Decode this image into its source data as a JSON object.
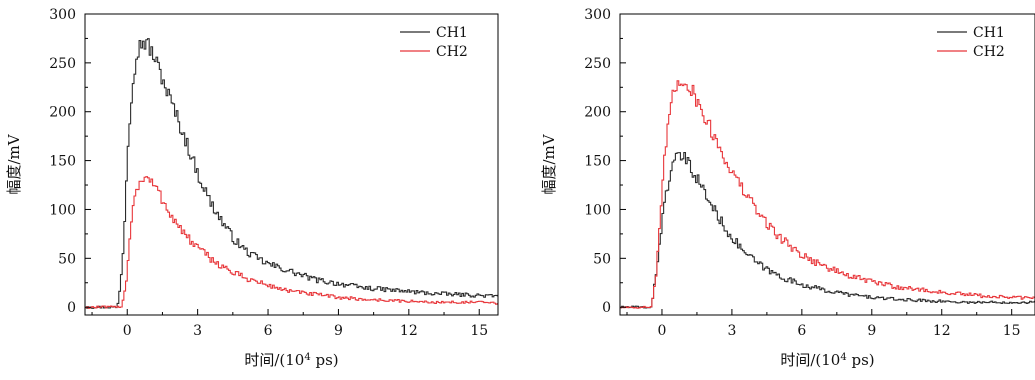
{
  "chart_data": [
    {
      "type": "line",
      "id": "left",
      "xlabel": "时间/(10",
      "xlabel_sup": "4",
      "xlabel_tail": " ps)",
      "ylabel": "幅度/mV",
      "xlim": [
        -1.8,
        15.8
      ],
      "ylim": [
        -8,
        300
      ],
      "xticks": [
        0,
        3,
        6,
        9,
        12,
        15
      ],
      "yticks": [
        0,
        50,
        100,
        150,
        200,
        250,
        300
      ],
      "legend_position": "top-right",
      "series": [
        {
          "name": "CH1",
          "color": "#2b2b2b",
          "x": [
            -1.8,
            -0.5,
            -0.4,
            -0.2,
            0,
            0.2,
            0.4,
            0.6,
            0.8,
            1.0,
            1.3,
            1.6,
            2.0,
            2.5,
            3.0,
            3.5,
            4.0,
            4.5,
            5.0,
            5.5,
            6.0,
            6.5,
            7.0,
            7.5,
            8.0,
            9.0,
            10.0,
            11.0,
            12.0,
            13.0,
            14.0,
            15.0,
            15.8
          ],
          "y": [
            0,
            0,
            5,
            60,
            170,
            235,
            262,
            272,
            270,
            262,
            245,
            225,
            200,
            168,
            135,
            108,
            88,
            70,
            58,
            50,
            44,
            40,
            36,
            32,
            28,
            24,
            20,
            18,
            16,
            14,
            13,
            12,
            11
          ]
        },
        {
          "name": "CH2",
          "color": "#e8363a",
          "x": [
            -1.8,
            -0.3,
            -0.1,
            0.1,
            0.3,
            0.5,
            0.7,
            0.9,
            1.1,
            1.4,
            1.7,
            2.0,
            2.5,
            3.0,
            3.5,
            4.0,
            4.5,
            5.0,
            5.5,
            6.0,
            7.0,
            8.0,
            9.0,
            10.0,
            11.0,
            12.0,
            13.0,
            14.0,
            15.0,
            15.8
          ],
          "y": [
            0,
            0,
            20,
            80,
            118,
            128,
            132,
            130,
            125,
            113,
            100,
            88,
            72,
            60,
            50,
            42,
            35,
            30,
            26,
            22,
            16,
            13,
            10,
            8,
            7,
            6,
            5,
            5,
            5,
            4
          ]
        }
      ]
    },
    {
      "type": "line",
      "id": "right",
      "xlabel": "时间/(10",
      "xlabel_sup": "4",
      "xlabel_tail": " ps)",
      "ylabel": "幅度/mV",
      "xlim": [
        -1.8,
        16
      ],
      "ylim": [
        -8,
        300
      ],
      "xticks": [
        0,
        3,
        6,
        9,
        12,
        15
      ],
      "yticks": [
        0,
        50,
        100,
        150,
        200,
        250,
        300
      ],
      "legend_position": "top-right",
      "series": [
        {
          "name": "CH1",
          "color": "#2b2b2b",
          "x": [
            -1.8,
            -0.5,
            -0.3,
            -0.1,
            0.1,
            0.3,
            0.5,
            0.7,
            0.9,
            1.1,
            1.4,
            1.7,
            2.0,
            2.5,
            3.0,
            3.5,
            4.0,
            4.5,
            5.0,
            5.5,
            6.0,
            7.0,
            8.0,
            9.0,
            10.0,
            11.0,
            12.0,
            13.0,
            14.0,
            15.0,
            16.0
          ],
          "y": [
            0,
            0,
            30,
            75,
            110,
            135,
            148,
            155,
            153,
            146,
            135,
            122,
            108,
            88,
            70,
            57,
            46,
            38,
            32,
            27,
            23,
            17,
            13,
            10,
            8,
            7,
            6,
            5,
            5,
            5,
            5
          ]
        },
        {
          "name": "CH2",
          "color": "#e8363a",
          "x": [
            -1.8,
            -0.5,
            -0.3,
            -0.1,
            0.1,
            0.3,
            0.5,
            0.7,
            0.9,
            1.1,
            1.4,
            1.7,
            2.0,
            2.5,
            3.0,
            3.5,
            4.0,
            4.5,
            5.0,
            5.5,
            6.0,
            7.0,
            8.0,
            9.0,
            10.0,
            11.0,
            12.0,
            13.0,
            14.0,
            15.0,
            16.0
          ],
          "y": [
            0,
            0,
            28,
            90,
            160,
            200,
            222,
            232,
            233,
            228,
            215,
            200,
            185,
            160,
            137,
            118,
            100,
            85,
            72,
            62,
            53,
            41,
            32,
            26,
            21,
            18,
            15,
            13,
            11,
            10,
            9
          ]
        }
      ]
    }
  ]
}
